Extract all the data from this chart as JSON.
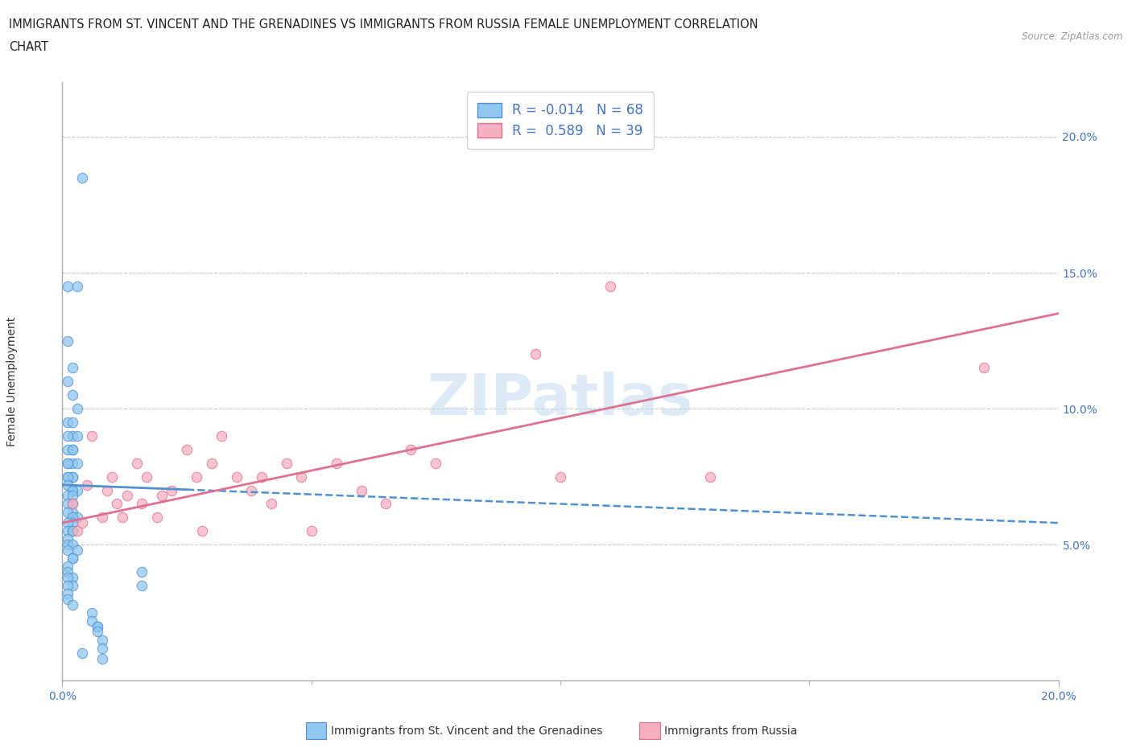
{
  "title_line1": "IMMIGRANTS FROM ST. VINCENT AND THE GRENADINES VS IMMIGRANTS FROM RUSSIA FEMALE UNEMPLOYMENT CORRELATION",
  "title_line2": "CHART",
  "source": "Source: ZipAtlas.com",
  "ylabel": "Female Unemployment",
  "xlim": [
    0.0,
    0.2
  ],
  "ylim": [
    0.0,
    0.22
  ],
  "yticks": [
    0.05,
    0.1,
    0.15,
    0.2
  ],
  "ytick_labels": [
    "5.0%",
    "10.0%",
    "15.0%",
    "20.0%"
  ],
  "legend_label1": "Immigrants from St. Vincent and the Grenadines",
  "legend_label2": "Immigrants from Russia",
  "R1": "-0.014",
  "N1": "68",
  "R2": "0.589",
  "N2": "39",
  "color_blue": "#90c8f0",
  "color_pink": "#f5b0c0",
  "color_blue_dark": "#5090d0",
  "color_pink_dark": "#e07090",
  "color_text_blue": "#4472c4",
  "scatter_blue_x": [
    0.004,
    0.003,
    0.001,
    0.001,
    0.002,
    0.001,
    0.002,
    0.003,
    0.001,
    0.002,
    0.002,
    0.001,
    0.003,
    0.002,
    0.001,
    0.002,
    0.001,
    0.002,
    0.003,
    0.001,
    0.002,
    0.001,
    0.002,
    0.001,
    0.001,
    0.002,
    0.003,
    0.002,
    0.001,
    0.002,
    0.001,
    0.002,
    0.002,
    0.001,
    0.003,
    0.002,
    0.002,
    0.001,
    0.001,
    0.002,
    0.002,
    0.001,
    0.001,
    0.002,
    0.003,
    0.001,
    0.002,
    0.002,
    0.001,
    0.001,
    0.002,
    0.001,
    0.002,
    0.001,
    0.001,
    0.001,
    0.002,
    0.006,
    0.006,
    0.007,
    0.007,
    0.007,
    0.008,
    0.008,
    0.004,
    0.008,
    0.016,
    0.016
  ],
  "scatter_blue_y": [
    0.185,
    0.145,
    0.145,
    0.125,
    0.115,
    0.11,
    0.105,
    0.1,
    0.095,
    0.095,
    0.09,
    0.09,
    0.09,
    0.085,
    0.085,
    0.085,
    0.08,
    0.08,
    0.08,
    0.08,
    0.075,
    0.075,
    0.075,
    0.075,
    0.072,
    0.07,
    0.07,
    0.07,
    0.068,
    0.068,
    0.065,
    0.065,
    0.062,
    0.062,
    0.06,
    0.06,
    0.058,
    0.058,
    0.055,
    0.055,
    0.055,
    0.052,
    0.05,
    0.05,
    0.048,
    0.048,
    0.045,
    0.045,
    0.042,
    0.04,
    0.038,
    0.038,
    0.035,
    0.035,
    0.032,
    0.03,
    0.028,
    0.025,
    0.022,
    0.02,
    0.02,
    0.018,
    0.015,
    0.012,
    0.01,
    0.008,
    0.04,
    0.035
  ],
  "scatter_pink_x": [
    0.002,
    0.003,
    0.004,
    0.005,
    0.006,
    0.008,
    0.009,
    0.01,
    0.011,
    0.012,
    0.013,
    0.015,
    0.016,
    0.017,
    0.019,
    0.02,
    0.022,
    0.025,
    0.027,
    0.028,
    0.03,
    0.032,
    0.035,
    0.038,
    0.04,
    0.042,
    0.045,
    0.048,
    0.05,
    0.055,
    0.06,
    0.065,
    0.07,
    0.075,
    0.095,
    0.1,
    0.11,
    0.13,
    0.185
  ],
  "scatter_pink_y": [
    0.065,
    0.055,
    0.058,
    0.072,
    0.09,
    0.06,
    0.07,
    0.075,
    0.065,
    0.06,
    0.068,
    0.08,
    0.065,
    0.075,
    0.06,
    0.068,
    0.07,
    0.085,
    0.075,
    0.055,
    0.08,
    0.09,
    0.075,
    0.07,
    0.075,
    0.065,
    0.08,
    0.075,
    0.055,
    0.08,
    0.07,
    0.065,
    0.085,
    0.08,
    0.12,
    0.075,
    0.145,
    0.075,
    0.115
  ],
  "blue_trendline_x": [
    0.0,
    0.2
  ],
  "blue_trendline_y": [
    0.072,
    0.058
  ],
  "pink_trendline_x": [
    0.0,
    0.2
  ],
  "pink_trendline_y": [
    0.058,
    0.135
  ]
}
